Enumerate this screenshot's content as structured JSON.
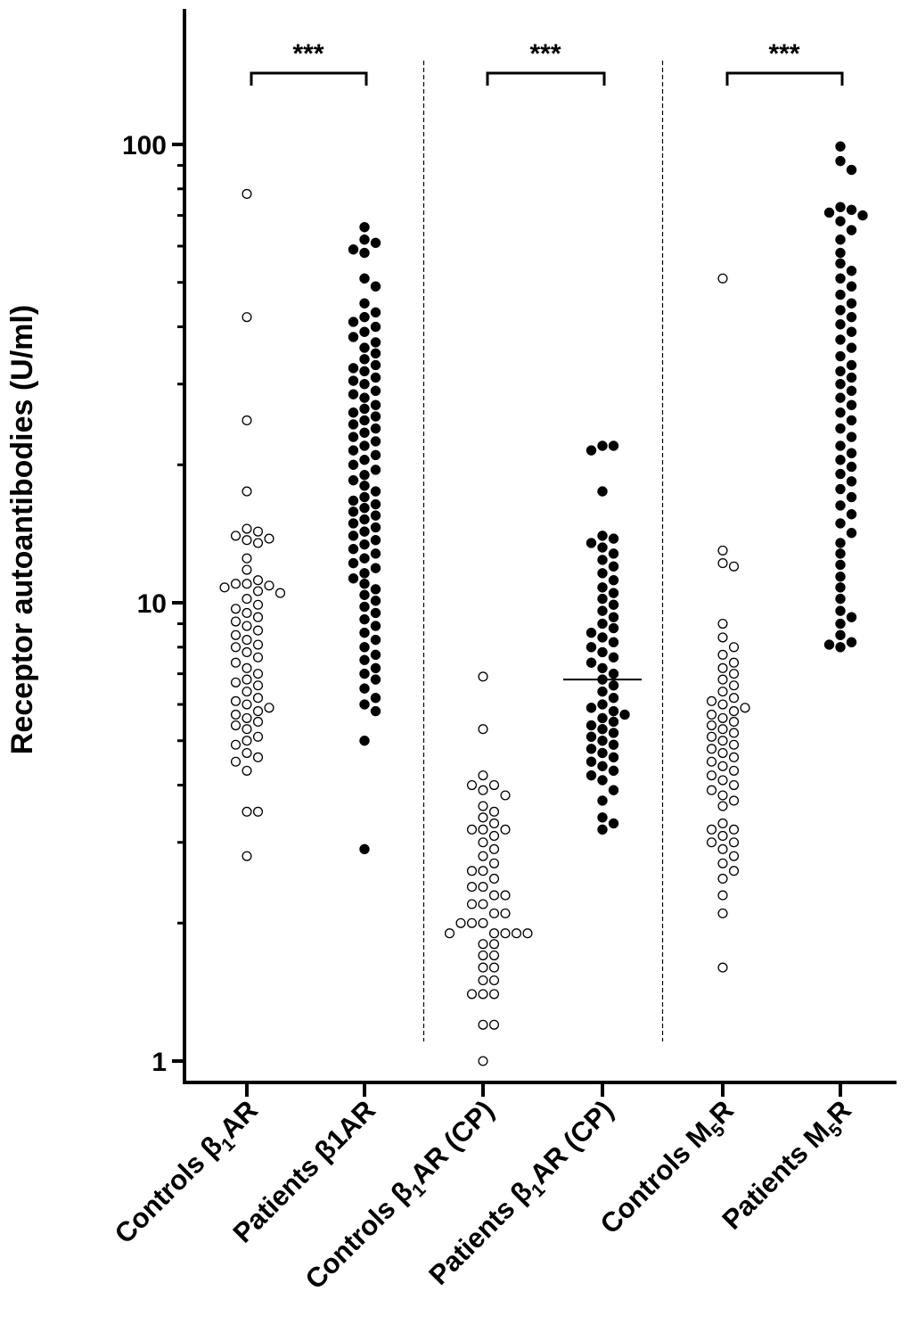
{
  "chart_data": {
    "type": "scatter",
    "title": "",
    "ylabel": "Receptor autoantibodies (U/ml)",
    "xlabel": "",
    "y_scale": "log",
    "ylim": [
      0.85,
      170
    ],
    "yticks": [
      {
        "value": 1,
        "label": "1"
      },
      {
        "value": 10,
        "label": "10"
      },
      {
        "value": 100,
        "label": "100"
      }
    ],
    "grid": false,
    "categories": [
      {
        "pre": "Controls ",
        "main": "β",
        "sub": "1",
        "post": "AR"
      },
      {
        "pre": "Patients  β1AR",
        "main": "",
        "sub": "",
        "post": ""
      },
      {
        "pre": "Controls ",
        "main": "β",
        "sub": "1",
        "post": "AR (CP)"
      },
      {
        "pre": "Patients ",
        "main": "β",
        "sub": "1",
        "post": "AR (CP)"
      },
      {
        "pre": "Controls ",
        "main": "M",
        "sub": "5",
        "post": "R"
      },
      {
        "pre": "Patients ",
        "main": "M",
        "sub": "5",
        "post": "R"
      }
    ],
    "series": [
      {
        "marker": "open",
        "color": "#000000",
        "values": [
          78,
          42,
          25,
          17.5,
          14.5,
          14.3,
          14,
          13.8,
          13.7,
          13.5,
          12.5,
          11.8,
          11.2,
          11,
          11,
          10.9,
          10.8,
          10.6,
          10.5,
          10.2,
          9.9,
          9.7,
          9.5,
          9.3,
          9.1,
          8.9,
          8.7,
          8.5,
          8.3,
          8.1,
          8,
          7.8,
          7.6,
          7.4,
          7.2,
          7,
          6.8,
          6.7,
          6.6,
          6.4,
          6.2,
          6.1,
          6,
          5.9,
          5.8,
          5.7,
          5.6,
          5.5,
          5.4,
          5.3,
          5.1,
          5,
          4.9,
          4.7,
          4.6,
          4.5,
          4.3,
          3.5,
          3.5,
          2.8
        ]
      },
      {
        "marker": "filled",
        "color": "#000000",
        "values": [
          66,
          62,
          61,
          59,
          58,
          51,
          49,
          45,
          43,
          42,
          41,
          40,
          39,
          38,
          37,
          36,
          35,
          34,
          33,
          32.5,
          32,
          31,
          30.5,
          30,
          29,
          28.5,
          28,
          27,
          26.5,
          26,
          25.5,
          25,
          24.5,
          24,
          23.5,
          23,
          22.5,
          22,
          21.5,
          21,
          20.5,
          20,
          19.5,
          19,
          18.5,
          18,
          17.5,
          17,
          16.7,
          16.4,
          16.1,
          15.8,
          15.5,
          15.2,
          14.9,
          14.6,
          14.3,
          14,
          13.7,
          13.4,
          13.1,
          12.8,
          12.5,
          12.2,
          11.9,
          11.6,
          11.3,
          11,
          10.7,
          10.4,
          10.1,
          9.8,
          9.5,
          9.2,
          8.9,
          8.6,
          8.3,
          8,
          7.7,
          7.5,
          7.2,
          7,
          6.8,
          6.5,
          6.2,
          6,
          5.8,
          5,
          2.9
        ]
      },
      {
        "marker": "open",
        "color": "#000000",
        "values": [
          6.9,
          5.3,
          4.2,
          4,
          4,
          3.9,
          3.8,
          3.6,
          3.5,
          3.4,
          3.3,
          3.2,
          3.2,
          3.2,
          3.1,
          3,
          2.9,
          2.8,
          2.7,
          2.6,
          2.6,
          2.5,
          2.4,
          2.4,
          2.3,
          2.3,
          2.2,
          2.2,
          2.1,
          2.1,
          2,
          2,
          2,
          1.9,
          1.9,
          1.9,
          1.9,
          1.9,
          1.8,
          1.8,
          1.7,
          1.7,
          1.6,
          1.6,
          1.5,
          1.5,
          1.4,
          1.4,
          1.4,
          1.2,
          1.2,
          1
        ]
      },
      {
        "marker": "filled",
        "color": "#000000",
        "values": [
          22,
          22,
          21.5,
          17.5,
          14,
          13.8,
          13.5,
          13.2,
          12.8,
          12.4,
          12,
          11.6,
          11.2,
          10.8,
          10.5,
          10.2,
          9.9,
          9.6,
          9.3,
          9,
          8.8,
          8.6,
          8.4,
          8.2,
          8,
          7.8,
          7.6,
          7.4,
          7.2,
          7,
          6.8,
          6.6,
          6.4,
          6.2,
          6,
          5.9,
          5.8,
          5.7,
          5.6,
          5.5,
          5.4,
          5.3,
          5.2,
          5.1,
          5,
          4.9,
          4.8,
          4.7,
          4.6,
          4.5,
          4.4,
          4.3,
          4.2,
          4.1,
          3.9,
          3.7,
          3.4,
          3.3,
          3.2
        ]
      },
      {
        "marker": "open",
        "color": "#000000",
        "values": [
          51,
          13,
          12.2,
          12,
          9,
          8.4,
          8,
          7.7,
          7.4,
          7.2,
          7,
          6.8,
          6.6,
          6.4,
          6.2,
          6.1,
          6,
          5.9,
          5.8,
          5.7,
          5.6,
          5.5,
          5.4,
          5.3,
          5.2,
          5.1,
          5,
          4.9,
          4.8,
          4.7,
          4.6,
          4.5,
          4.4,
          4.3,
          4.2,
          4.1,
          4,
          3.9,
          3.8,
          3.7,
          3.6,
          3.3,
          3.2,
          3.2,
          3.1,
          3,
          3,
          2.9,
          2.8,
          2.7,
          2.6,
          2.5,
          2.3,
          2.1,
          1.6
        ]
      },
      {
        "marker": "filled",
        "color": "#000000",
        "values": [
          99,
          92,
          88,
          73,
          72,
          71,
          70,
          68,
          65,
          62,
          58,
          55,
          53,
          51,
          49,
          47,
          45,
          43.5,
          42,
          40.5,
          39,
          37.5,
          36,
          34.5,
          33,
          32,
          31,
          30,
          29,
          28,
          27,
          26,
          25,
          24,
          23,
          22,
          21.2,
          20.5,
          19.8,
          19.1,
          18.4,
          17.7,
          17,
          16.3,
          15.6,
          14.9,
          14.2,
          13.5,
          12.8,
          12.1,
          11.4,
          10.8,
          10.2,
          9.6,
          9.3,
          9,
          8.5,
          8.2,
          8.1,
          8
        ]
      }
    ],
    "lines": [
      {
        "category": 3,
        "value": 6.8
      }
    ],
    "significance": [
      {
        "between": [
          0,
          1
        ],
        "label": "***"
      },
      {
        "between": [
          2,
          3
        ],
        "label": "***"
      },
      {
        "between": [
          4,
          5
        ],
        "label": "***"
      }
    ],
    "dividers_after_category": [
      1,
      3
    ]
  }
}
